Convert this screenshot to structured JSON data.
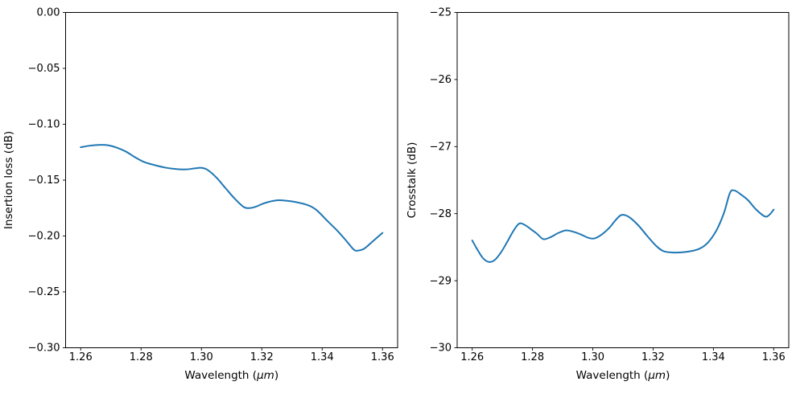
{
  "figure": {
    "background": "#ffffff",
    "text_color": "#000000",
    "spine_color": "#000000"
  },
  "chart_data": [
    {
      "type": "line",
      "title": "",
      "xlabel": "Wavelength (μm)",
      "xlabel_unit_italic": true,
      "ylabel": "Insertion loss (dB)",
      "xlim": [
        1.255,
        1.365
      ],
      "ylim": [
        -0.3,
        0.0
      ],
      "grid": false,
      "legend": "none",
      "line_color": "#1f77b4",
      "xticks": {
        "values": [
          1.26,
          1.28,
          1.3,
          1.32,
          1.34,
          1.36
        ],
        "labels": [
          "1.26",
          "1.28",
          "1.30",
          "1.32",
          "1.34",
          "1.36"
        ]
      },
      "yticks": {
        "values": [
          0.0,
          -0.05,
          -0.1,
          -0.15,
          -0.2,
          -0.25,
          -0.3
        ],
        "labels": [
          "0.00",
          "−0.05",
          "−0.10",
          "−0.15",
          "−0.20",
          "−0.25",
          "−0.30"
        ]
      },
      "series": [
        {
          "name": "insertion-loss",
          "x": [
            1.26,
            1.263,
            1.266,
            1.269,
            1.272,
            1.275,
            1.278,
            1.281,
            1.284,
            1.288,
            1.292,
            1.295,
            1.298,
            1.3,
            1.302,
            1.305,
            1.308,
            1.311,
            1.314,
            1.316,
            1.318,
            1.321,
            1.325,
            1.328,
            1.331,
            1.335,
            1.338,
            1.342,
            1.345,
            1.348,
            1.3505,
            1.352,
            1.354,
            1.357,
            1.36
          ],
          "y": [
            -0.1206,
            -0.1192,
            -0.1185,
            -0.1188,
            -0.121,
            -0.1245,
            -0.1295,
            -0.1338,
            -0.1362,
            -0.1388,
            -0.1402,
            -0.1404,
            -0.1394,
            -0.139,
            -0.1408,
            -0.1478,
            -0.1572,
            -0.1665,
            -0.174,
            -0.175,
            -0.1738,
            -0.1705,
            -0.1681,
            -0.1684,
            -0.1695,
            -0.1722,
            -0.1765,
            -0.1872,
            -0.1952,
            -0.2043,
            -0.2122,
            -0.213,
            -0.2112,
            -0.2042,
            -0.1972
          ]
        }
      ]
    },
    {
      "type": "line",
      "title": "",
      "xlabel": "Wavelength (μm)",
      "xlabel_unit_italic": true,
      "ylabel": "Crosstalk (dB)",
      "xlim": [
        1.255,
        1.365
      ],
      "ylim": [
        -30,
        -25
      ],
      "grid": false,
      "legend": "none",
      "line_color": "#1f77b4",
      "xticks": {
        "values": [
          1.26,
          1.28,
          1.3,
          1.32,
          1.34,
          1.36
        ],
        "labels": [
          "1.26",
          "1.28",
          "1.30",
          "1.32",
          "1.34",
          "1.36"
        ]
      },
      "yticks": {
        "values": [
          -25,
          -26,
          -27,
          -28,
          -29,
          -30
        ],
        "labels": [
          "−25",
          "−26",
          "−27",
          "−28",
          "−29",
          "−30"
        ]
      },
      "series": [
        {
          "name": "crosstalk",
          "x": [
            1.26,
            1.2615,
            1.2635,
            1.2655,
            1.2675,
            1.2695,
            1.2715,
            1.2735,
            1.2755,
            1.2775,
            1.28,
            1.2815,
            1.2836,
            1.286,
            1.2885,
            1.2911,
            1.2935,
            1.296,
            1.2985,
            1.3005,
            1.303,
            1.3055,
            1.3075,
            1.3095,
            1.312,
            1.315,
            1.318,
            1.321,
            1.3235,
            1.327,
            1.331,
            1.335,
            1.338,
            1.341,
            1.3435,
            1.3455,
            1.347,
            1.349,
            1.3515,
            1.354,
            1.357,
            1.3585,
            1.36
          ],
          "y": [
            -28.4,
            -28.52,
            -28.66,
            -28.72,
            -28.69,
            -28.58,
            -28.43,
            -28.27,
            -28.15,
            -28.17,
            -28.25,
            -28.3,
            -28.38,
            -28.35,
            -28.29,
            -28.25,
            -28.27,
            -28.31,
            -28.36,
            -28.37,
            -28.31,
            -28.21,
            -28.1,
            -28.02,
            -28.05,
            -28.17,
            -28.33,
            -28.48,
            -28.56,
            -28.58,
            -28.57,
            -28.53,
            -28.44,
            -28.25,
            -27.99,
            -27.69,
            -27.655,
            -27.71,
            -27.8,
            -27.93,
            -28.04,
            -28.02,
            -27.94
          ]
        }
      ]
    }
  ]
}
